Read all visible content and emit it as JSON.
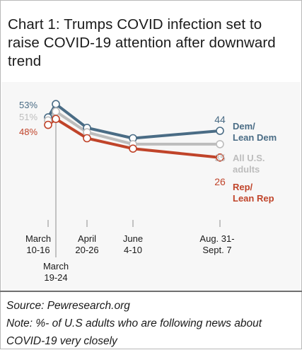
{
  "title": "Chart 1: Trumps COVID infection set to raise COVID-19 attention  after downward trend",
  "footer": {
    "source": "Source: Pewresearch.org",
    "note": "Note: %- of U.S adults who are following news about COVID-19 very closely"
  },
  "chart_data": {
    "type": "line",
    "title": "Chart 1: Trumps COVID infection set to raise COVID-19 attention  after downward trend",
    "x": [
      "March 10-16",
      "March 19-24",
      "April 20-26",
      "June 4-10",
      "Aug. 31-Sept. 7"
    ],
    "x_ticks": [
      {
        "lines": [
          "March",
          "10-16"
        ]
      },
      {
        "lines": [
          "March",
          "19-24"
        ]
      },
      {
        "lines": [
          "April",
          "20-26"
        ]
      },
      {
        "lines": [
          "June",
          "4-10"
        ]
      },
      {
        "lines": [
          "Aug. 31-",
          "Sept. 7"
        ]
      }
    ],
    "series": [
      {
        "name": "Dem/ Lean Dem",
        "label_lines": [
          "Dem/",
          "Lean Dem"
        ],
        "color": "#4a6c85",
        "values": [
          53,
          62,
          46,
          39,
          44
        ],
        "start_label": "53%",
        "end_label": "44"
      },
      {
        "name": "All U.S. adults",
        "label_lines": [
          "All U.S.",
          "adults"
        ],
        "color": "#bdbdbd",
        "values": [
          51,
          57,
          43,
          35,
          35
        ],
        "start_label": "51%",
        "end_label": "35"
      },
      {
        "name": "Rep/ Lean Rep",
        "label_lines": [
          "Rep/",
          "Lean Rep"
        ],
        "color": "#c0442a",
        "values": [
          48,
          52,
          39,
          32,
          26
        ],
        "start_label": "48%",
        "end_label": "26"
      }
    ],
    "grid": false,
    "legend": "inline-right"
  }
}
